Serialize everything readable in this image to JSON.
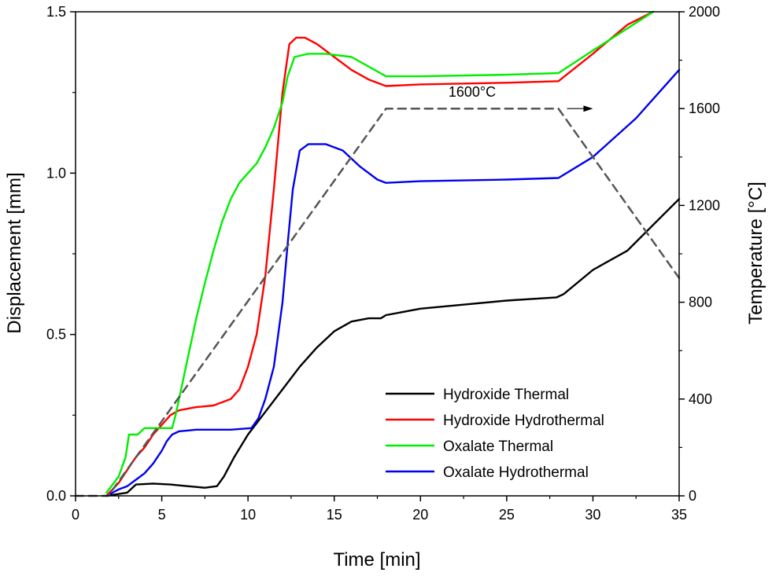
{
  "chart_data": {
    "type": "line",
    "xlabel": "Time [min]",
    "ylabel": "Displacement [mm]",
    "y2label": "Temperature [°C]",
    "xlim": [
      0,
      35
    ],
    "ylim": [
      0,
      1.5
    ],
    "y2lim": [
      0,
      2000
    ],
    "xticks": [
      0,
      5,
      10,
      15,
      20,
      25,
      30,
      35
    ],
    "yticks": [
      0.0,
      0.5,
      1.0,
      1.5
    ],
    "yticklabels": [
      "0.0",
      "0.5",
      "1.0",
      "1.5"
    ],
    "y2ticks": [
      0,
      400,
      800,
      1200,
      1600,
      2000
    ],
    "legend_position": "bottom-right",
    "series": [
      {
        "name": "Hydroxide Thermal",
        "color": "#000000",
        "axis": "left",
        "x": [
          1.8,
          3.0,
          3.5,
          4.5,
          5.5,
          6.5,
          7.5,
          8.2,
          8.6,
          9.2,
          10.0,
          11.0,
          12.0,
          13.0,
          14.0,
          15.0,
          16.0,
          17.0,
          17.7,
          18.0,
          20.0,
          22.0,
          25.0,
          27.9,
          28.3,
          30.0,
          32.0,
          35.0
        ],
        "values": [
          0.0,
          0.01,
          0.035,
          0.038,
          0.035,
          0.03,
          0.025,
          0.03,
          0.06,
          0.12,
          0.19,
          0.26,
          0.33,
          0.4,
          0.46,
          0.51,
          0.54,
          0.55,
          0.55,
          0.56,
          0.58,
          0.59,
          0.605,
          0.615,
          0.625,
          0.7,
          0.76,
          0.92
        ]
      },
      {
        "name": "Hydroxide Hydrothermal",
        "color": "#ff0000",
        "axis": "left",
        "x": [
          1.8,
          2.5,
          3.0,
          3.5,
          4.0,
          4.5,
          5.0,
          5.5,
          6.0,
          6.5,
          7.0,
          8.0,
          9.0,
          9.5,
          10.0,
          10.5,
          11.0,
          11.5,
          12.0,
          12.4,
          12.8,
          13.3,
          14.0,
          15.0,
          16.0,
          17.0,
          18.0,
          20.0,
          25.0,
          28.0,
          30.0,
          32.0,
          33.5
        ],
        "values": [
          0.0,
          0.04,
          0.08,
          0.12,
          0.15,
          0.19,
          0.22,
          0.25,
          0.265,
          0.27,
          0.275,
          0.28,
          0.3,
          0.33,
          0.4,
          0.5,
          0.68,
          0.95,
          1.25,
          1.4,
          1.42,
          1.42,
          1.4,
          1.36,
          1.32,
          1.29,
          1.27,
          1.275,
          1.28,
          1.285,
          1.37,
          1.46,
          1.51
        ]
      },
      {
        "name": "Oxalate Thermal",
        "color": "#00ee00",
        "axis": "left",
        "x": [
          1.8,
          2.5,
          2.9,
          3.1,
          3.6,
          4.0,
          5.0,
          5.6,
          5.8,
          6.2,
          6.6,
          7.0,
          7.5,
          8.0,
          8.5,
          9.0,
          9.5,
          10.0,
          10.5,
          11.0,
          11.5,
          12.0,
          12.3,
          12.7,
          13.5,
          14.5,
          16.0,
          18.0,
          20.0,
          25.0,
          28.0,
          30.0,
          33.5
        ],
        "values": [
          0.01,
          0.06,
          0.12,
          0.19,
          0.19,
          0.21,
          0.21,
          0.21,
          0.25,
          0.35,
          0.45,
          0.55,
          0.66,
          0.76,
          0.85,
          0.92,
          0.97,
          1.0,
          1.03,
          1.08,
          1.14,
          1.22,
          1.3,
          1.36,
          1.37,
          1.37,
          1.36,
          1.3,
          1.3,
          1.305,
          1.31,
          1.38,
          1.51
        ]
      },
      {
        "name": "Oxalate Hydrothermal",
        "color": "#0000ee",
        "axis": "left",
        "x": [
          1.8,
          2.5,
          3.0,
          3.5,
          4.0,
          4.5,
          5.0,
          5.3,
          5.6,
          6.0,
          7.0,
          9.0,
          10.2,
          10.6,
          11.0,
          11.5,
          12.0,
          12.3,
          12.6,
          13.0,
          13.5,
          14.5,
          15.5,
          16.5,
          17.5,
          18.0,
          20.0,
          25.0,
          28.0,
          30.0,
          32.5,
          35.0
        ],
        "values": [
          0.0,
          0.02,
          0.03,
          0.05,
          0.07,
          0.1,
          0.14,
          0.17,
          0.19,
          0.2,
          0.205,
          0.205,
          0.21,
          0.24,
          0.3,
          0.4,
          0.6,
          0.78,
          0.95,
          1.07,
          1.09,
          1.09,
          1.07,
          1.02,
          0.98,
          0.97,
          0.975,
          0.98,
          0.985,
          1.05,
          1.17,
          1.32
        ]
      },
      {
        "name": "Temperature",
        "color": "#555555",
        "axis": "right",
        "dashed": true,
        "x": [
          0.0,
          1.9,
          18.0,
          28.0,
          35.0
        ],
        "values": [
          0,
          0,
          1600,
          1600,
          900
        ]
      }
    ],
    "annotation": {
      "text": "1600°C",
      "x": 23.0,
      "y": 1650,
      "arrow_from": 28.5,
      "arrow_to": 30.0
    }
  }
}
